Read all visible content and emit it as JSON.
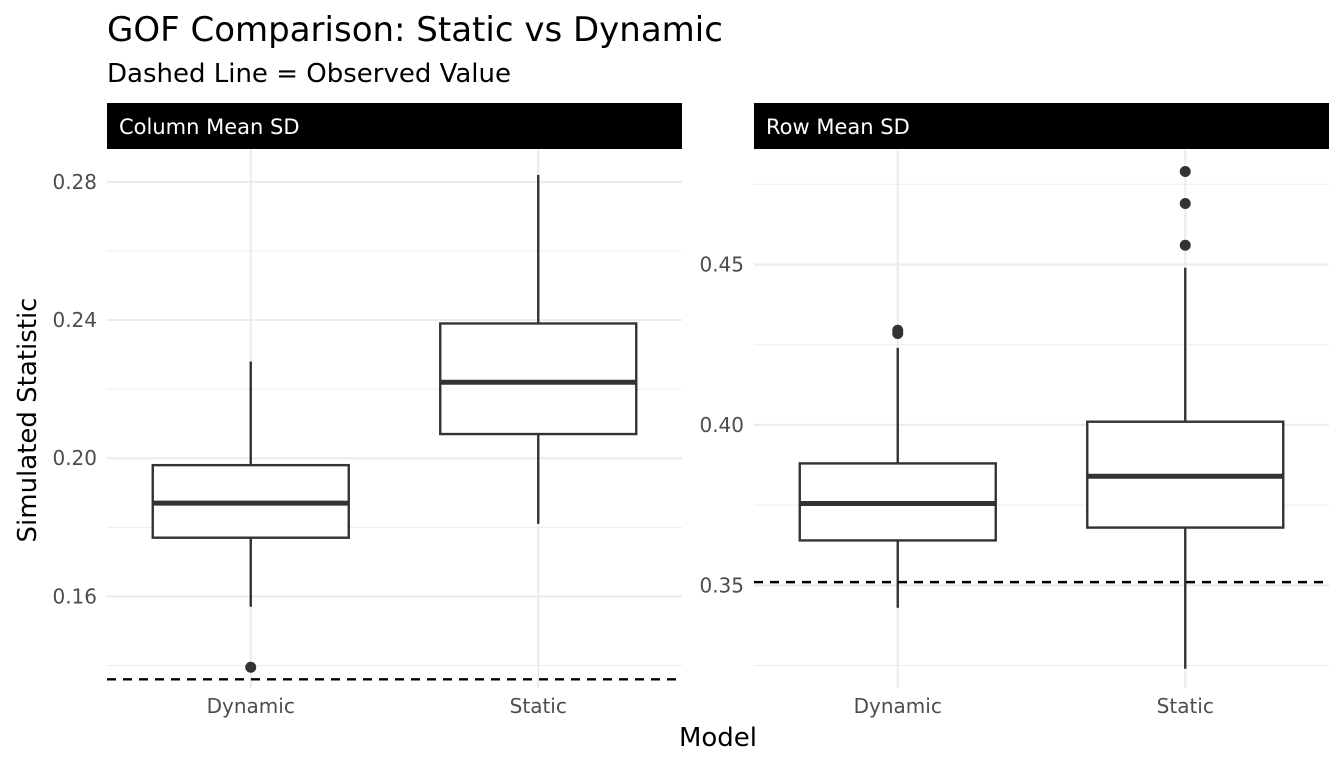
{
  "chart_data": {
    "type": "boxplot",
    "title": "GOF Comparison: Static vs Dynamic",
    "subtitle": "Dashed Line = Observed Value",
    "xlabel": "Model",
    "ylabel": "Simulated Statistic",
    "categories": [
      "Dynamic",
      "Static"
    ],
    "grid": true,
    "legend": "none",
    "facets": [
      {
        "name": "Column Mean SD",
        "ylim": [
          0.1335,
          0.2895
        ],
        "yticks": [
          0.16,
          0.2,
          0.24,
          0.28
        ],
        "tick_labels": [
          "0.16",
          "0.20",
          "0.24",
          "0.28"
        ],
        "observed": 0.136,
        "boxes": [
          {
            "category": "Dynamic",
            "whisker_low": 0.157,
            "q1": 0.177,
            "median": 0.187,
            "q3": 0.198,
            "whisker_high": 0.228,
            "outliers": [
              0.1395
            ]
          },
          {
            "category": "Static",
            "whisker_low": 0.181,
            "q1": 0.207,
            "median": 0.222,
            "q3": 0.239,
            "whisker_high": 0.282,
            "outliers": []
          }
        ]
      },
      {
        "name": "Row Mean SD",
        "ylim": [
          0.318,
          0.486
        ],
        "yticks": [
          0.35,
          0.4,
          0.45
        ],
        "tick_labels": [
          "0.35",
          "0.40",
          "0.45"
        ],
        "observed": 0.351,
        "boxes": [
          {
            "category": "Dynamic",
            "whisker_low": 0.343,
            "q1": 0.364,
            "median": 0.3755,
            "q3": 0.388,
            "whisker_high": 0.424,
            "outliers": [
              0.4285,
              0.4295
            ]
          },
          {
            "category": "Static",
            "whisker_low": 0.324,
            "q1": 0.368,
            "median": 0.384,
            "q3": 0.401,
            "whisker_high": 0.449,
            "outliers": [
              0.456,
              0.469,
              0.479
            ]
          }
        ]
      }
    ]
  }
}
